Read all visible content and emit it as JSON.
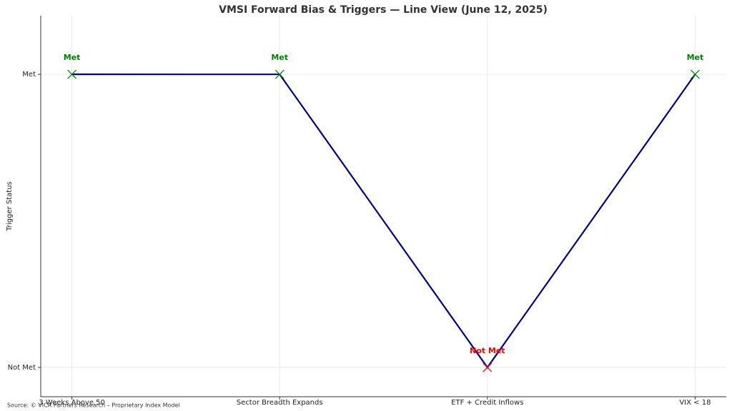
{
  "chart_data": {
    "type": "line",
    "title": "VMSI Forward Bias & Triggers — Line View (June 12, 2025)",
    "y_label": "Trigger Status",
    "source": "Source: © VICA Partners Research – Proprietary Index Model",
    "categories": [
      "3 Weeks Above 50",
      "Sector Breadth Expands",
      "ETF + Credit Inflows",
      "VIX < 18"
    ],
    "series": [
      {
        "color": "#00008b",
        "values": [
          1,
          0.9999,
          0,
          1
        ],
        "value_labels": [
          "Met",
          "Met",
          "Not Met",
          "Met"
        ],
        "point_colors": [
          "green",
          "green",
          "red",
          "green"
        ]
      }
    ],
    "ylim": [
      -0.1,
      1.2
    ],
    "yticks": [
      {
        "value": 0,
        "label": "Not Met"
      },
      {
        "value": 1,
        "label": "Met"
      }
    ],
    "grid": true
  }
}
